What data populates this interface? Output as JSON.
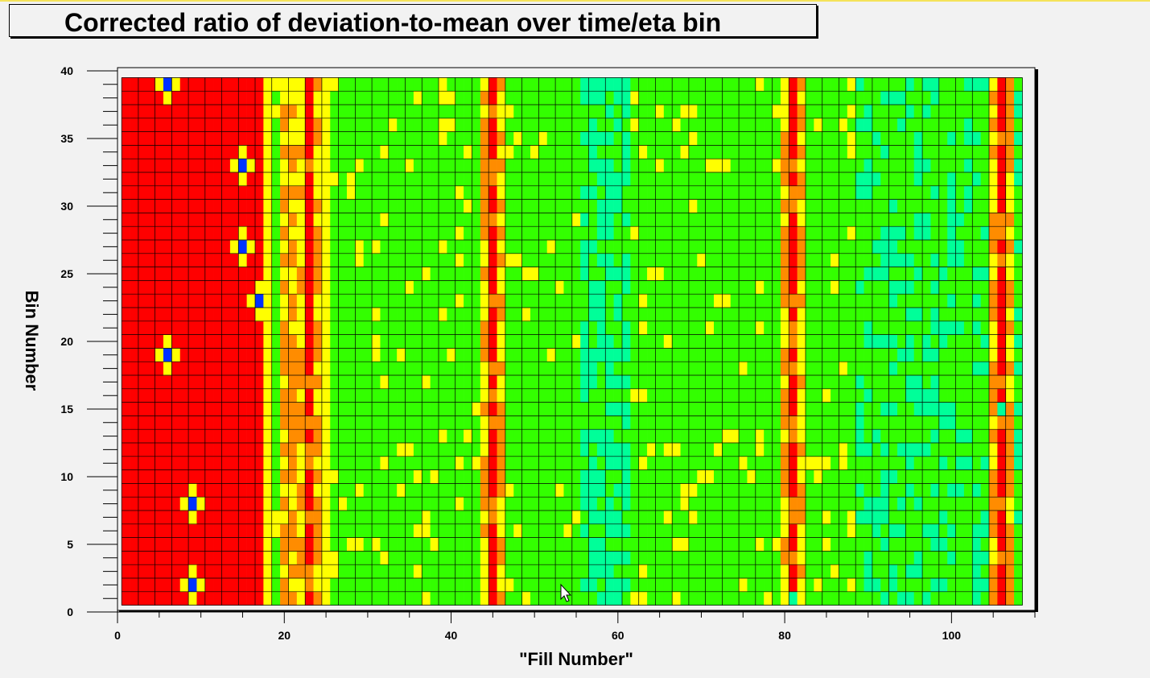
{
  "chart_data": {
    "type": "heatmap",
    "title": "Corrected ratio of deviation-to-mean over time/eta bin",
    "xlabel": "\"Fill Number\"",
    "ylabel": "Bin Number",
    "xlim": [
      0,
      110
    ],
    "ylim": [
      0,
      40
    ],
    "x_tick_labels": [
      "0",
      "20",
      "40",
      "60",
      "80",
      "100"
    ],
    "y_tick_labels": [
      "0",
      "5",
      "10",
      "15",
      "20",
      "25",
      "30",
      "35",
      "40"
    ],
    "grid": true,
    "x_bins": [
      1,
      108
    ],
    "y_bins": [
      1,
      39
    ],
    "colors": {
      "red": "#ff0000",
      "orange": "#ff8c00",
      "yellow": "#ffff00",
      "green": "#33ff00",
      "cyan": "#00ff99",
      "blue": "#0033ff",
      "frame": "#000000",
      "background": "#f2f2f2"
    },
    "regions": {
      "red_block_x": [
        1,
        17
      ],
      "band_x": [
        20,
        24
      ],
      "vertical_hot_lines": [
        {
          "x": 23,
          "level": 3
        },
        {
          "x": 45,
          "level": 3
        },
        {
          "x": 81,
          "level": 3
        },
        {
          "x": 106,
          "level": 3
        }
      ],
      "cold_spots": [
        {
          "x": 6,
          "y": 39
        },
        {
          "x": 9,
          "y": 8
        },
        {
          "x": 9,
          "y": 2
        },
        {
          "x": 6,
          "y": 19
        },
        {
          "x": 15,
          "y": 33
        },
        {
          "x": 15,
          "y": 27
        },
        {
          "x": 17,
          "y": 23
        },
        {
          "x": 81,
          "y": 1
        },
        {
          "x": 106,
          "y": 15
        }
      ]
    }
  }
}
